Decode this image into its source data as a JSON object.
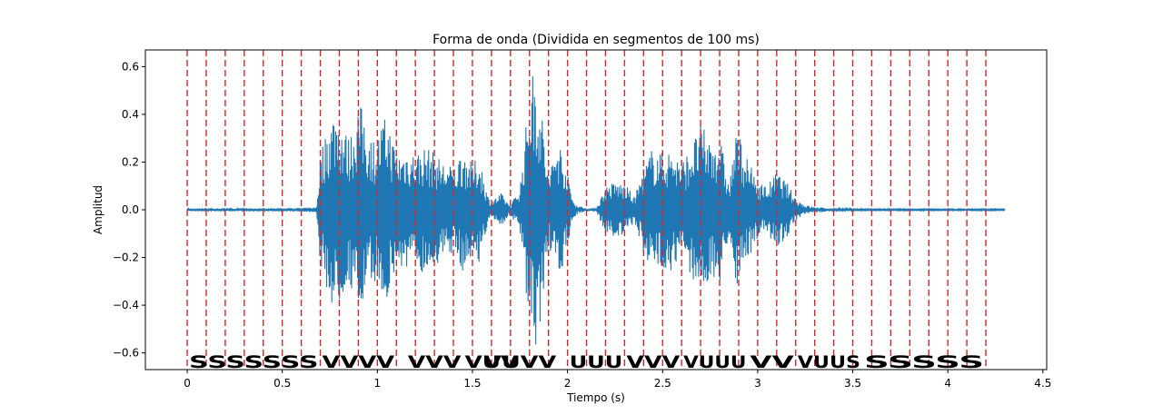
{
  "chart_data": {
    "type": "line",
    "title": "Forma de onda (Dividida en segmentos de 100 ms)",
    "xlabel": "Tiempo (s)",
    "ylabel": "Amplitud",
    "xlim": [
      -0.22,
      4.52
    ],
    "ylim": [
      -0.67,
      0.67
    ],
    "xticks": [
      0,
      0.5,
      1,
      1.5,
      2,
      2.5,
      3,
      3.5,
      4,
      4.5
    ],
    "xtick_labels": [
      "0",
      "0.5",
      "1",
      "1.5",
      "2",
      "2.5",
      "3",
      "3.5",
      "4",
      "4.5"
    ],
    "yticks": [
      -0.6,
      -0.4,
      -0.2,
      0.0,
      0.2,
      0.4,
      0.6
    ],
    "ytick_labels": [
      "−0.6",
      "−0.4",
      "−0.2",
      "0.0",
      "0.2",
      "0.4",
      "0.6"
    ],
    "grid": false,
    "series": [
      {
        "color": "#1f77b4",
        "signal": "audio waveform",
        "envelope": {
          "t": [
            0.0,
            0.1,
            0.2,
            0.3,
            0.4,
            0.5,
            0.6,
            0.68,
            0.7,
            0.72,
            0.75,
            0.78,
            0.8,
            0.83,
            0.85,
            0.88,
            0.9,
            0.93,
            0.95,
            0.98,
            1.0,
            1.02,
            1.05,
            1.08,
            1.1,
            1.12,
            1.15,
            1.2,
            1.25,
            1.3,
            1.35,
            1.4,
            1.45,
            1.5,
            1.53,
            1.55,
            1.58,
            1.6,
            1.62,
            1.65,
            1.68,
            1.7,
            1.75,
            1.78,
            1.8,
            1.83,
            1.85,
            1.88,
            1.9,
            1.93,
            1.95,
            1.98,
            2.0,
            2.03,
            2.05,
            2.1,
            2.15,
            2.2,
            2.25,
            2.3,
            2.33,
            2.35,
            2.4,
            2.45,
            2.5,
            2.55,
            2.6,
            2.63,
            2.65,
            2.68,
            2.7,
            2.75,
            2.8,
            2.85,
            2.88,
            2.9,
            2.93,
            2.95,
            2.98,
            3.0,
            3.05,
            3.1,
            3.15,
            3.2,
            3.25,
            3.3,
            3.4,
            3.5,
            3.6,
            3.7,
            3.8,
            3.9,
            4.0,
            4.1,
            4.2,
            4.3
          ],
          "amp": [
            0.006,
            0.006,
            0.006,
            0.006,
            0.006,
            0.006,
            0.008,
            0.01,
            0.24,
            0.3,
            0.38,
            0.44,
            0.4,
            0.34,
            0.3,
            0.38,
            0.45,
            0.42,
            0.33,
            0.3,
            0.3,
            0.36,
            0.4,
            0.3,
            0.26,
            0.24,
            0.26,
            0.24,
            0.27,
            0.24,
            0.2,
            0.18,
            0.26,
            0.19,
            0.23,
            0.18,
            0.06,
            0.04,
            0.05,
            0.07,
            0.04,
            0.018,
            0.1,
            0.34,
            0.56,
            0.6,
            0.52,
            0.3,
            0.14,
            0.25,
            0.3,
            0.24,
            0.15,
            0.04,
            0.02,
            0.006,
            0.006,
            0.1,
            0.12,
            0.11,
            0.08,
            0.05,
            0.18,
            0.27,
            0.24,
            0.26,
            0.2,
            0.24,
            0.28,
            0.32,
            0.36,
            0.3,
            0.32,
            0.1,
            0.3,
            0.33,
            0.26,
            0.2,
            0.16,
            0.12,
            0.1,
            0.16,
            0.12,
            0.05,
            0.02,
            0.012,
            0.006,
            0.004,
            0.003,
            0.003,
            0.003,
            0.003,
            0.003,
            0.003,
            0.003,
            0.003
          ]
        }
      }
    ],
    "vlines": {
      "color": "#d62728",
      "style": "dashed",
      "x": [
        0,
        0.1,
        0.2,
        0.3,
        0.4,
        0.5,
        0.6,
        0.7,
        0.8,
        0.9,
        1.0,
        1.1,
        1.2,
        1.3,
        1.4,
        1.5,
        1.6,
        1.7,
        1.8,
        1.9,
        2.0,
        2.1,
        2.2,
        2.3,
        2.4,
        2.5,
        2.6,
        2.7,
        2.8,
        2.9,
        3.0,
        3.1,
        3.2,
        3.3,
        3.4,
        3.5,
        3.6,
        3.7,
        3.8,
        3.9,
        4.0,
        4.1,
        4.2
      ]
    },
    "annotations": [
      {
        "text": "SSSSSSS",
        "x0": 0.0,
        "x1": 0.7
      },
      {
        "text": "VVVV",
        "x0": 0.7,
        "x1": 1.1
      },
      {
        "text": "VVV",
        "x0": 1.15,
        "x1": 1.45
      },
      {
        "text": "VUV",
        "x0": 1.45,
        "x1": 1.75
      },
      {
        "text": "VUVV",
        "x0": 1.55,
        "x1": 1.95
      },
      {
        "text": "UUU",
        "x0": 2.0,
        "x1": 2.3
      },
      {
        "text": "VVV",
        "x0": 2.3,
        "x1": 2.6
      },
      {
        "text": "VUUU",
        "x0": 2.6,
        "x1": 2.95
      },
      {
        "text": "VV",
        "x0": 2.95,
        "x1": 3.2
      },
      {
        "text": "VUUS",
        "x0": 3.2,
        "x1": 3.55
      },
      {
        "text": "SSSSS",
        "x0": 3.55,
        "x1": 4.2
      }
    ]
  }
}
